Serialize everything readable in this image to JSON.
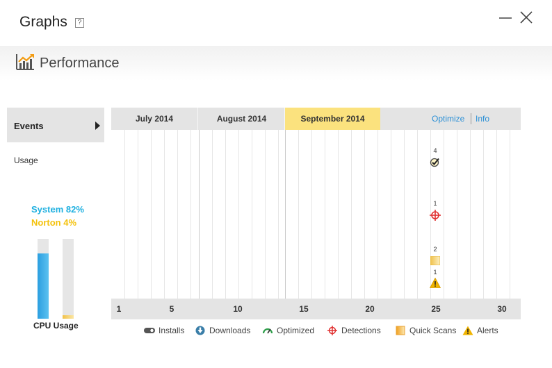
{
  "window": {
    "title": "Graphs",
    "help": "?"
  },
  "header": {
    "title": "Performance"
  },
  "sidebar": {
    "events_label": "Events",
    "usage_label": "Usage",
    "cpu": {
      "system_text": "System 82%",
      "norton_text": "Norton 4%",
      "system_percent": 82,
      "norton_percent": 4,
      "label": "CPU Usage",
      "system_color": "#1fb0e0",
      "norton_color": "#f4c20d"
    }
  },
  "graph": {
    "months": [
      "July 2014",
      "August 2014",
      "September 2014"
    ],
    "selected_month": "September 2014",
    "links": {
      "optimize": "Optimize",
      "info": "Info"
    },
    "axis_ticks": [
      "1",
      "5",
      "10",
      "15",
      "20",
      "25",
      "30"
    ],
    "events": [
      {
        "day": 25,
        "type": "optimized",
        "count": "4",
        "icon": "check-circle-icon"
      },
      {
        "day": 25,
        "type": "detections",
        "count": "1",
        "icon": "crosshair-icon"
      },
      {
        "day": 25,
        "type": "quick-scans",
        "count": "2",
        "icon": "quick-scan-icon"
      },
      {
        "day": 25,
        "type": "alerts",
        "count": "1",
        "icon": "warning-icon"
      }
    ]
  },
  "legend": [
    {
      "label": "Installs",
      "icon": "installs-icon"
    },
    {
      "label": "Downloads",
      "icon": "download-icon"
    },
    {
      "label": "Optimized",
      "icon": "gauge-icon"
    },
    {
      "label": "Detections",
      "icon": "crosshair-icon"
    },
    {
      "label": "Quick Scans",
      "icon": "quick-scan-icon"
    },
    {
      "label": "Alerts",
      "icon": "warning-icon"
    }
  ],
  "colors": {
    "accent_blue": "#2a8fd6",
    "selected_month": "#fbe27e",
    "detection_red": "#e03030",
    "alert_yellow": "#f0b400"
  }
}
